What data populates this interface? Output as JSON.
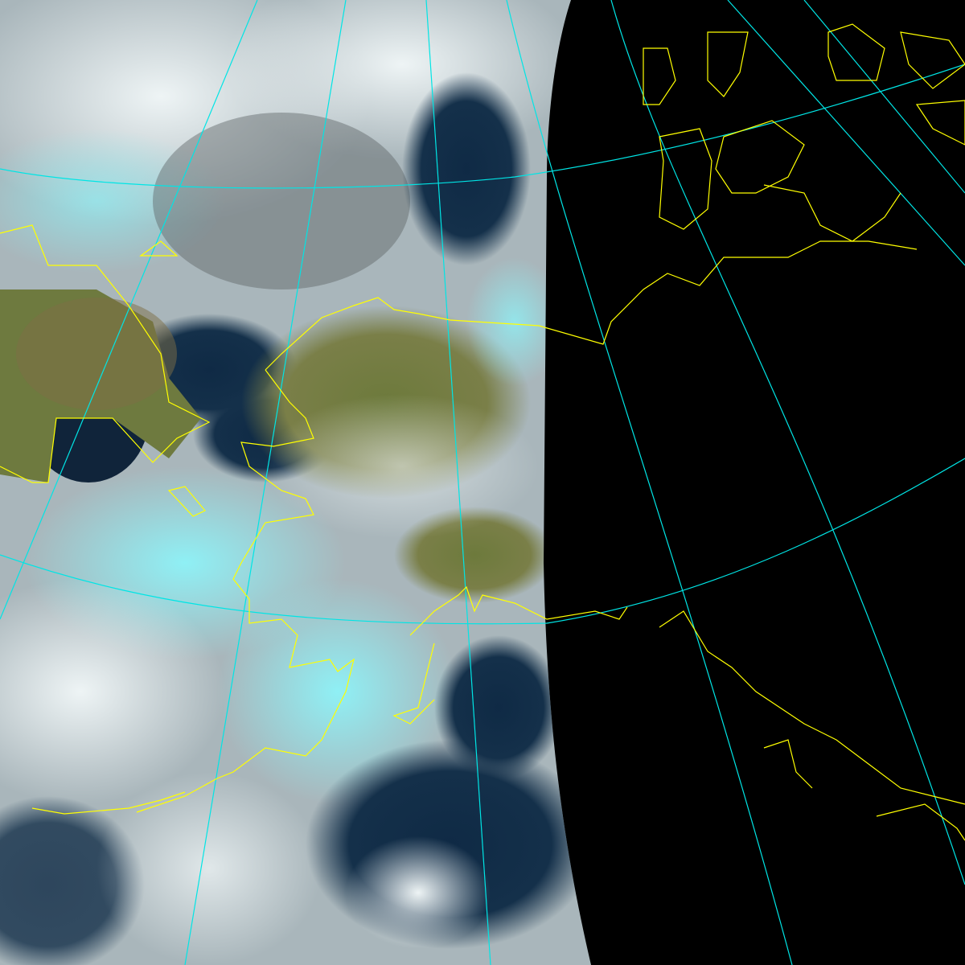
{
  "map": {
    "kind": "satellite-composite",
    "colors": {
      "night_side": "#000000",
      "graticule": "#00e5e5",
      "coastline": "#ffff00",
      "cloud": "#d9e6ea",
      "cloud_ice": "#7fe8f0",
      "ocean": "#0d2238",
      "land": "#6f7a3e"
    },
    "layers": [
      "imagery",
      "night-mask",
      "graticule",
      "coastlines"
    ]
  }
}
